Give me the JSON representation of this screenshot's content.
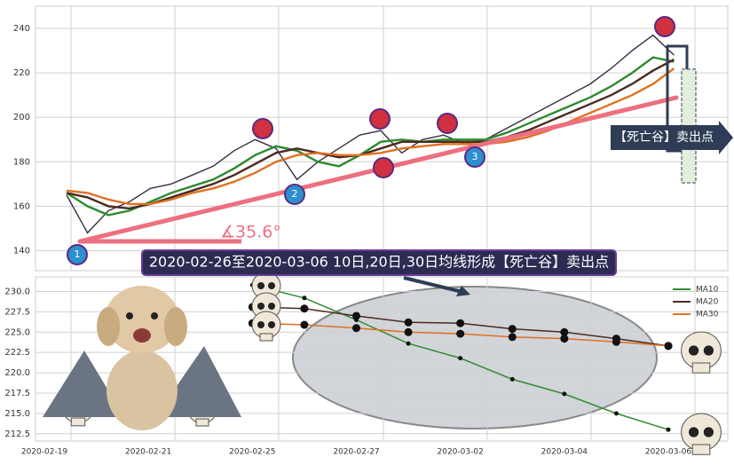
{
  "title": "2020-02-26至2020-03-06 10日,20日,30日均线形成【死亡谷】卖出点",
  "sell_label": "【死亡谷】卖出点",
  "angle_label": "∡35.6°",
  "markers": [
    {
      "label": "1"
    },
    {
      "label": "2"
    },
    {
      "label": "3"
    }
  ],
  "chart_data": [
    {
      "type": "line",
      "ylim": [
        131,
        250
      ],
      "yticks": [
        140,
        160,
        180,
        200,
        220,
        240
      ],
      "grid": true,
      "series": [
        {
          "color": "#3a2f45",
          "values": [
            165,
            148,
            158,
            162,
            168,
            170,
            174,
            178,
            185,
            190,
            186,
            172,
            180,
            186,
            192,
            194,
            184,
            190,
            192,
            188,
            190,
            195,
            200,
            205,
            210,
            215,
            222,
            230,
            237,
            228
          ]
        },
        {
          "color": "#2e8b2e",
          "values": [
            166,
            160,
            156,
            158,
            162,
            166,
            169,
            172,
            177,
            183,
            187,
            185,
            180,
            178,
            183,
            189,
            190,
            189,
            190,
            190,
            190,
            193,
            197,
            201,
            205,
            209,
            214,
            220,
            227,
            225
          ]
        },
        {
          "color": "#4b2a20",
          "values": [
            166,
            164,
            160,
            159,
            161,
            164,
            167,
            170,
            174,
            179,
            184,
            186,
            184,
            182,
            183,
            186,
            189,
            189,
            189,
            189,
            189,
            191,
            194,
            198,
            202,
            206,
            210,
            215,
            221,
            226
          ]
        },
        {
          "color": "#e07020",
          "values": [
            167,
            166,
            163,
            161,
            161,
            163,
            166,
            168,
            171,
            175,
            180,
            183,
            184,
            183,
            183,
            184,
            186,
            187,
            188,
            188,
            188,
            189,
            191,
            194,
            198,
            202,
            206,
            210,
            215,
            222
          ]
        }
      ]
    },
    {
      "type": "line",
      "categories": [
        "2020-02-19",
        null,
        "2020-02-21",
        null,
        "2020-02-25",
        null,
        "2020-02-27",
        null,
        "2020-03-02",
        null,
        "2020-03-04",
        null,
        "2020-03-06"
      ],
      "ylim": [
        211.6,
        231.8
      ],
      "yticks": [
        {
          "value": 212.5,
          "label": "212.5"
        },
        {
          "value": 215,
          "label": "215.0"
        },
        {
          "value": 217.5,
          "label": "217.5"
        },
        {
          "value": 220,
          "label": "220.0"
        },
        {
          "value": 222.5,
          "label": "222.5"
        },
        {
          "value": 225,
          "label": "225.0"
        },
        {
          "value": 227.5,
          "label": "227.5"
        },
        {
          "value": 230,
          "label": "230.0"
        }
      ],
      "grid": true,
      "legend": "upper right",
      "series": [
        {
          "name": "MA10",
          "color": "#2e8b2e",
          "values": [
            null,
            null,
            null,
            null,
            230.8,
            229.2,
            226.5,
            223.6,
            221.8,
            219.2,
            217.4,
            215.0,
            213.0
          ]
        },
        {
          "name": "MA20",
          "color": "#4b2a20",
          "values": [
            null,
            null,
            null,
            null,
            228.1,
            227.9,
            227.0,
            226.2,
            226.1,
            225.4,
            225.0,
            224.2,
            223.3
          ]
        },
        {
          "name": "MA30",
          "color": "#e07020",
          "values": [
            null,
            null,
            null,
            null,
            226.1,
            225.9,
            225.5,
            225.0,
            224.8,
            224.4,
            224.2,
            223.8,
            223.3
          ]
        }
      ]
    }
  ]
}
